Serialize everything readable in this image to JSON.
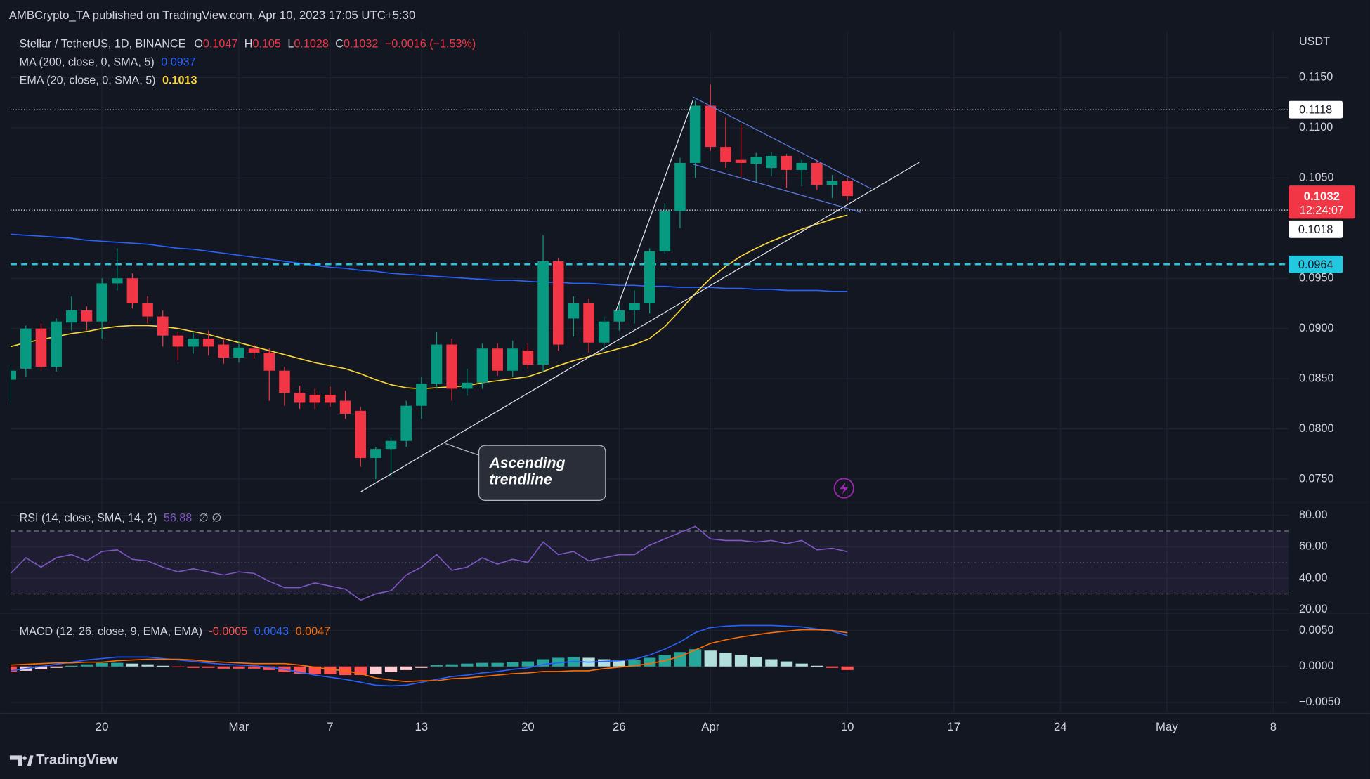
{
  "header": {
    "text": "AMBCrypto_TA published on TradingView.com, Apr 10, 2023 17:05 UTC+5:30"
  },
  "footer": {
    "brand": "TradingView"
  },
  "chart_data": [
    {
      "type": "candlestick",
      "title": "Stellar / TetherUS, 1D, BINANCE",
      "ohlc_labels": [
        "O",
        "H",
        "L",
        "C"
      ],
      "change": "−0.0016 (−1.53%)",
      "axis_label": "USDT",
      "countdown": "12:24:07",
      "up_color": "#089981",
      "down_color": "#f23645",
      "grid": true,
      "x": [
        "2023-02-14",
        "2023-02-15",
        "2023-02-16",
        "2023-02-17",
        "2023-02-18",
        "2023-02-19",
        "2023-02-20",
        "2023-02-21",
        "2023-02-22",
        "2023-02-23",
        "2023-02-24",
        "2023-02-25",
        "2023-02-26",
        "2023-02-27",
        "2023-02-28",
        "2023-03-01",
        "2023-03-02",
        "2023-03-03",
        "2023-03-04",
        "2023-03-05",
        "2023-03-06",
        "2023-03-07",
        "2023-03-08",
        "2023-03-09",
        "2023-03-10",
        "2023-03-11",
        "2023-03-12",
        "2023-03-13",
        "2023-03-14",
        "2023-03-15",
        "2023-03-16",
        "2023-03-17",
        "2023-03-18",
        "2023-03-19",
        "2023-03-20",
        "2023-03-21",
        "2023-03-22",
        "2023-03-23",
        "2023-03-24",
        "2023-03-25",
        "2023-03-26",
        "2023-03-27",
        "2023-03-28",
        "2023-03-29",
        "2023-03-30",
        "2023-03-31",
        "2023-04-01",
        "2023-04-02",
        "2023-04-03",
        "2023-04-04",
        "2023-04-05",
        "2023-04-06",
        "2023-04-07",
        "2023-04-08",
        "2023-04-09",
        "2023-04-10"
      ],
      "open": [
        0.0849,
        0.086,
        0.09,
        0.0862,
        0.0906,
        0.0918,
        0.0907,
        0.0945,
        0.095,
        0.0925,
        0.0912,
        0.0893,
        0.0882,
        0.089,
        0.0884,
        0.0871,
        0.088,
        0.0876,
        0.0858,
        0.0836,
        0.0834,
        0.0834,
        0.0828,
        0.0818,
        0.0771,
        0.078,
        0.0788,
        0.0823,
        0.0845,
        0.0884,
        0.084,
        0.0846,
        0.088,
        0.0858,
        0.0878,
        0.0864,
        0.0967,
        0.091,
        0.0925,
        0.0886,
        0.0907,
        0.0918,
        0.0925,
        0.0977,
        0.1017,
        0.1065,
        0.1122,
        0.1081,
        0.1068,
        0.1064,
        0.106,
        0.1072,
        0.1058,
        0.1065,
        0.1043,
        0.1047
      ],
      "high": [
        0.0862,
        0.0903,
        0.0905,
        0.091,
        0.0932,
        0.0922,
        0.095,
        0.098,
        0.0955,
        0.0932,
        0.0918,
        0.0897,
        0.0897,
        0.0898,
        0.089,
        0.0888,
        0.0884,
        0.088,
        0.0862,
        0.0843,
        0.084,
        0.0842,
        0.0838,
        0.0822,
        0.0782,
        0.0792,
        0.0828,
        0.0852,
        0.0897,
        0.089,
        0.086,
        0.0885,
        0.0885,
        0.0888,
        0.0885,
        0.0993,
        0.097,
        0.0932,
        0.093,
        0.0912,
        0.0925,
        0.0938,
        0.098,
        0.1025,
        0.107,
        0.1127,
        0.1143,
        0.111,
        0.1103,
        0.1075,
        0.1076,
        0.1074,
        0.1068,
        0.1068,
        0.1053,
        0.105
      ],
      "low": [
        0.0826,
        0.0852,
        0.0858,
        0.0857,
        0.0898,
        0.0898,
        0.089,
        0.0938,
        0.092,
        0.0905,
        0.0882,
        0.0868,
        0.0875,
        0.0873,
        0.0865,
        0.0866,
        0.087,
        0.0828,
        0.0823,
        0.082,
        0.082,
        0.0822,
        0.081,
        0.0762,
        0.075,
        0.0752,
        0.0782,
        0.081,
        0.084,
        0.0828,
        0.0833,
        0.084,
        0.0853,
        0.0852,
        0.086,
        0.0856,
        0.0878,
        0.0892,
        0.0876,
        0.0878,
        0.0898,
        0.0905,
        0.0915,
        0.0975,
        0.1,
        0.105,
        0.1077,
        0.106,
        0.105,
        0.1045,
        0.1052,
        0.104,
        0.1042,
        0.1038,
        0.103,
        0.1028
      ],
      "close": [
        0.0858,
        0.09,
        0.0862,
        0.0907,
        0.0918,
        0.0907,
        0.0945,
        0.095,
        0.0925,
        0.0912,
        0.0893,
        0.0882,
        0.089,
        0.0882,
        0.0871,
        0.0881,
        0.0876,
        0.0858,
        0.0836,
        0.0826,
        0.0826,
        0.0826,
        0.0815,
        0.0771,
        0.078,
        0.0788,
        0.0823,
        0.0845,
        0.0884,
        0.084,
        0.0846,
        0.088,
        0.0858,
        0.088,
        0.0864,
        0.0967,
        0.0884,
        0.0925,
        0.0886,
        0.0907,
        0.0918,
        0.0925,
        0.0977,
        0.1017,
        0.1065,
        0.1122,
        0.1081,
        0.1066,
        0.1065,
        0.1071,
        0.1072,
        0.1058,
        0.1065,
        0.1043,
        0.1047,
        0.1032
      ],
      "series": [
        {
          "name": "MA (200, close, 0, SMA, 5)",
          "color": "#2962ff",
          "values": [
            0.0994,
            0.0993,
            0.0992,
            0.0991,
            0.099,
            0.0988,
            0.0987,
            0.0986,
            0.0985,
            0.0984,
            0.0982,
            0.098,
            0.0979,
            0.0977,
            0.0975,
            0.0973,
            0.0971,
            0.0969,
            0.0967,
            0.0965,
            0.0963,
            0.0961,
            0.096,
            0.0958,
            0.0957,
            0.0955,
            0.0954,
            0.0953,
            0.0952,
            0.0951,
            0.095,
            0.0949,
            0.0948,
            0.0948,
            0.0947,
            0.0946,
            0.0946,
            0.0945,
            0.0945,
            0.0944,
            0.0943,
            0.0943,
            0.0942,
            0.0942,
            0.0941,
            0.0941,
            0.0941,
            0.094,
            0.094,
            0.0939,
            0.0939,
            0.0938,
            0.0938,
            0.0938,
            0.0937,
            0.0937
          ]
        },
        {
          "name": "EMA (20, close, 0, SMA, 5)",
          "color": "#fdd835",
          "values": [
            0.0882,
            0.0886,
            0.0889,
            0.0892,
            0.0895,
            0.0897,
            0.09,
            0.0902,
            0.0903,
            0.0903,
            0.0902,
            0.09,
            0.0897,
            0.0894,
            0.089,
            0.0886,
            0.0882,
            0.0878,
            0.0874,
            0.087,
            0.0866,
            0.0863,
            0.086,
            0.0855,
            0.0849,
            0.0844,
            0.0841,
            0.084,
            0.0841,
            0.0842,
            0.0843,
            0.0846,
            0.0848,
            0.085,
            0.0852,
            0.0857,
            0.0863,
            0.0868,
            0.0872,
            0.0876,
            0.088,
            0.0884,
            0.089,
            0.0902,
            0.0918,
            0.0935,
            0.095,
            0.0962,
            0.0972,
            0.098,
            0.0987,
            0.0993,
            0.0999,
            0.1004,
            0.1009,
            0.1013
          ]
        }
      ],
      "price_lines": [
        {
          "value": 0.1118,
          "color": "#ffffff",
          "style": "dotted"
        },
        {
          "value": 0.1018,
          "color": "#ffffff",
          "style": "dotted"
        },
        {
          "value": 0.0964,
          "color": "#22c7e0",
          "style": "dashed"
        }
      ],
      "annotation": {
        "lines": [
          "Ascending",
          "trendline"
        ]
      },
      "xlim": [
        "2023-02-14",
        "2023-05-09"
      ],
      "xticks": [
        {
          "value": "2023-02-20",
          "label": "20"
        },
        {
          "value": "2023-03-01",
          "label": "Mar"
        },
        {
          "value": "2023-03-07",
          "label": "7"
        },
        {
          "value": "2023-03-13",
          "label": "13"
        },
        {
          "value": "2023-03-20",
          "label": "20"
        },
        {
          "value": "2023-03-26",
          "label": "26"
        },
        {
          "value": "2023-04-01",
          "label": "Apr"
        },
        {
          "value": "2023-04-10",
          "label": "10"
        },
        {
          "value": "2023-04-17",
          "label": "17"
        },
        {
          "value": "2023-04-24",
          "label": "24"
        },
        {
          "value": "2023-05-01",
          "label": "May"
        },
        {
          "value": "2023-05-08",
          "label": "8"
        }
      ],
      "ylim": [
        0.0727,
        0.1196
      ],
      "yticks": [
        {
          "value": 0.115,
          "label": "0.1150"
        },
        {
          "value": 0.11,
          "label": "0.1100"
        },
        {
          "value": 0.105,
          "label": "0.1050"
        },
        {
          "value": 0.095,
          "label": "0.0950"
        },
        {
          "value": 0.09,
          "label": "0.0900"
        },
        {
          "value": 0.085,
          "label": "0.0850"
        },
        {
          "value": 0.08,
          "label": "0.0800"
        },
        {
          "value": 0.075,
          "label": "0.0750"
        }
      ]
    },
    {
      "type": "line",
      "title": "RSI (14, close, SMA, 14, 2)",
      "extra": "∅ ∅",
      "band": [
        30,
        70
      ],
      "midline": 50,
      "band_color": "#7e57c2",
      "grid": true,
      "series": [
        {
          "color": "#7e57c2",
          "values": [
            43,
            53,
            47,
            53,
            55,
            51,
            57,
            58,
            52,
            51,
            47,
            44,
            46,
            44,
            42,
            44,
            43,
            38,
            34,
            34,
            37,
            35,
            33,
            26,
            30,
            32,
            42,
            47,
            55,
            45,
            47,
            53,
            49,
            52,
            50,
            63,
            55,
            57,
            51,
            53,
            55,
            55,
            61,
            65,
            69,
            73,
            65,
            64,
            64,
            63,
            64,
            62,
            64,
            58,
            59,
            56.88
          ]
        }
      ],
      "ylim": [
        18.9,
        86.7
      ],
      "yticks": [
        {
          "value": 80,
          "label": "80.00"
        },
        {
          "value": 60,
          "label": "60.00"
        },
        {
          "value": 40,
          "label": "40.00"
        },
        {
          "value": 20,
          "label": "20.00"
        }
      ]
    },
    {
      "type": "macd",
      "title": "MACD (12, 26, close, 9, EMA, EMA)",
      "grid": true,
      "histogram": {
        "colors": [
          "#26a69a",
          "#b2dfdb",
          "#ff5252",
          "#ffcdd2"
        ],
        "values": [
          -0.0008,
          -0.0006,
          -0.0004,
          -0.0002,
          0.0001,
          0.0003,
          0.0005,
          0.0005,
          0.0004,
          0.0003,
          0.0001,
          -0.0001,
          -0.0002,
          -0.0002,
          -0.0003,
          -0.0003,
          -0.0003,
          -0.0005,
          -0.0008,
          -0.001,
          -0.0011,
          -0.0011,
          -0.0012,
          -0.0012,
          -0.001,
          -0.0008,
          -0.0005,
          -0.0002,
          0.0002,
          0.0003,
          0.0004,
          0.0005,
          0.0005,
          0.0006,
          0.0007,
          0.001,
          0.0012,
          0.0013,
          0.0012,
          0.001,
          0.0009,
          0.0009,
          0.0012,
          0.0016,
          0.002,
          0.0024,
          0.0022,
          0.0019,
          0.0016,
          0.0013,
          0.001,
          0.0007,
          0.0004,
          0.0001,
          -0.0002,
          -0.0005
        ]
      },
      "series": [
        {
          "color": "#2962ff",
          "values": [
            -0.0006,
            -0.0003,
            0.0,
            0.0003,
            0.0006,
            0.0009,
            0.0011,
            0.0013,
            0.0013,
            0.0013,
            0.0011,
            0.0009,
            0.0007,
            0.0005,
            0.0003,
            0.0002,
            0.0001,
            -0.0001,
            -0.0004,
            -0.0008,
            -0.0012,
            -0.0015,
            -0.0018,
            -0.0022,
            -0.0026,
            -0.0027,
            -0.0026,
            -0.0022,
            -0.0018,
            -0.0014,
            -0.0012,
            -0.0009,
            -0.0007,
            -0.0004,
            -0.0002,
            0.0003,
            0.0005,
            0.0007,
            0.0006,
            0.0007,
            0.0008,
            0.001,
            0.0016,
            0.0024,
            0.0034,
            0.0047,
            0.0054,
            0.0056,
            0.0057,
            0.0057,
            0.0057,
            0.0056,
            0.0055,
            0.0052,
            0.0049,
            0.0043
          ]
        },
        {
          "color": "#ff6d00",
          "values": [
            0.0002,
            0.0003,
            0.0004,
            0.0005,
            0.0005,
            0.0006,
            0.0006,
            0.0008,
            0.0009,
            0.001,
            0.001,
            0.001,
            0.0009,
            0.0007,
            0.0006,
            0.0005,
            0.0004,
            0.0004,
            0.0004,
            0.0002,
            -0.0001,
            -0.0004,
            -0.0006,
            -0.001,
            -0.0016,
            -0.0019,
            -0.0021,
            -0.002,
            -0.002,
            -0.0017,
            -0.0016,
            -0.0014,
            -0.0012,
            -0.001,
            -0.0009,
            -0.0007,
            -0.0007,
            -0.0006,
            -0.0006,
            -0.0003,
            -0.0001,
            0.0001,
            0.0004,
            0.0008,
            0.0014,
            0.0023,
            0.0032,
            0.0037,
            0.0041,
            0.0044,
            0.0047,
            0.0049,
            0.0051,
            0.0051,
            0.005,
            0.0047
          ]
        }
      ],
      "ylim": [
        -0.0063,
        0.0073
      ],
      "yticks": [
        {
          "value": 0.005,
          "label": "0.0050"
        },
        {
          "value": 0,
          "label": "0.0000"
        },
        {
          "value": -0.005,
          "label": "−0.0050"
        }
      ]
    }
  ]
}
